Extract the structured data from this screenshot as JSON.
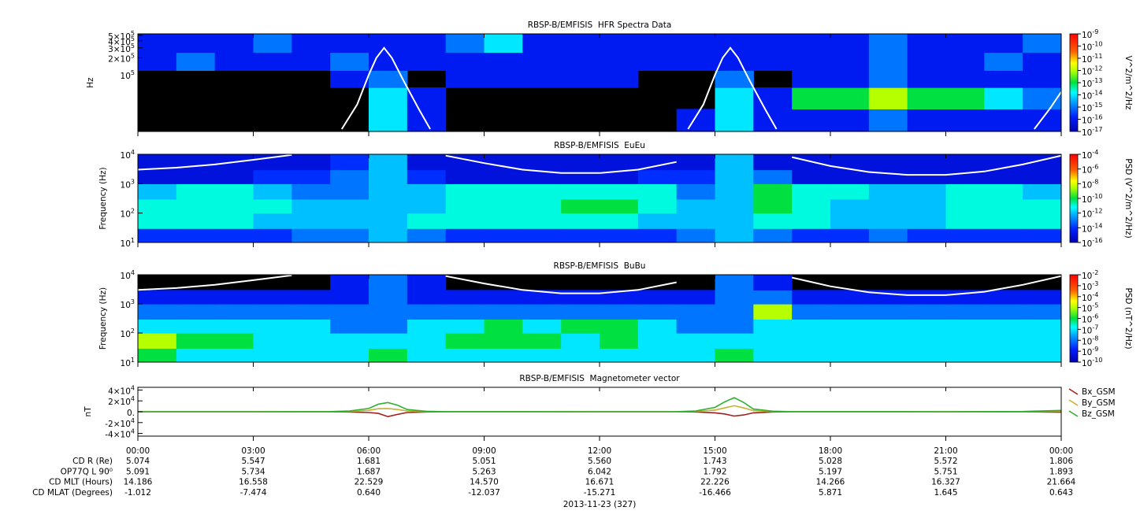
{
  "chart_data": [
    {
      "type": "heatmap",
      "title": "RBSP-B/EMFISIS  HFR Spectra Data",
      "ylabel": "Hz",
      "ylog": true,
      "xlim": [
        0,
        24
      ],
      "ylim": [
        10000,
        530000
      ],
      "yticks": [
        {
          "value": 500000,
          "label": "5×10^5"
        },
        {
          "value": 400000,
          "label": "4×10^5"
        },
        {
          "value": 300000,
          "label": "3×10^5"
        },
        {
          "value": 200000,
          "label": "2×10^5"
        },
        {
          "value": 100000,
          "label": "10^5"
        }
      ],
      "ybins": [
        10000,
        25000,
        60000,
        120000,
        250000,
        530000
      ],
      "z": [
        [
          null,
          null,
          null,
          null,
          null,
          null,
          1e-14,
          1e-16,
          null,
          null,
          null,
          null,
          null,
          null,
          1e-16,
          1e-14,
          1e-16,
          1e-16,
          1e-16,
          1e-15,
          1e-16,
          1e-16,
          1e-16,
          1e-16
        ],
        [
          null,
          null,
          null,
          null,
          null,
          null,
          1e-14,
          1e-16,
          null,
          null,
          null,
          null,
          null,
          null,
          null,
          1e-14,
          1e-16,
          1e-13,
          1e-13,
          1e-12,
          1e-13,
          1e-13,
          1e-14,
          1e-15
        ],
        [
          null,
          null,
          null,
          null,
          null,
          1e-16,
          1e-15,
          null,
          1e-16,
          1e-16,
          1e-16,
          1e-16,
          1e-16,
          null,
          null,
          1e-15,
          null,
          1e-16,
          1e-16,
          1e-15,
          1e-16,
          1e-16,
          1e-16,
          1e-16
        ],
        [
          1e-16,
          1e-15,
          1e-16,
          1e-16,
          1e-16,
          1e-15,
          1e-16,
          1e-16,
          1e-16,
          1e-16,
          1e-16,
          1e-16,
          1e-16,
          1e-16,
          1e-16,
          1e-16,
          1e-16,
          1e-16,
          1e-16,
          1e-15,
          1e-16,
          1e-16,
          1e-15,
          1e-16
        ],
        [
          1e-16,
          1e-16,
          1e-16,
          1e-15,
          1e-16,
          1e-16,
          1e-16,
          1e-16,
          1e-15,
          1e-14,
          1e-16,
          1e-16,
          1e-16,
          1e-16,
          1e-16,
          1e-16,
          1e-16,
          1e-16,
          1e-16,
          1e-15,
          1e-16,
          1e-16,
          1e-16,
          1e-15
        ]
      ],
      "colorbar": {
        "label": "V^2/m^2/Hz",
        "lim": [
          1e-17,
          1e-09
        ],
        "ticks": [
          {
            "value": 1e-09,
            "label": "10^-9"
          },
          {
            "value": 1e-10,
            "label": "10^-10"
          },
          {
            "value": 1e-11,
            "label": "10^-11"
          },
          {
            "value": 1e-12,
            "label": "10^-12"
          },
          {
            "value": 1e-13,
            "label": "10^-13"
          },
          {
            "value": 1e-14,
            "label": "10^-14"
          },
          {
            "value": 1e-15,
            "label": "10^-15"
          },
          {
            "value": 1e-16,
            "label": "10^-16"
          },
          {
            "value": 1e-17,
            "label": "10^-17"
          }
        ]
      },
      "overlay": {
        "color": "#ffffff",
        "x": [
          5.3,
          5.7,
          6.0,
          6.2,
          6.4,
          6.6,
          6.9,
          7.3,
          7.6,
          11,
          14.3,
          14.7,
          15.0,
          15.2,
          15.4,
          15.6,
          15.9,
          16.3,
          16.6,
          20,
          23.3,
          23.7,
          24
        ],
        "values": [
          11000,
          30000,
          100000,
          200000,
          300000,
          200000,
          80000,
          25000,
          11000,
          null,
          11000,
          30000,
          100000,
          200000,
          300000,
          200000,
          80000,
          25000,
          11000,
          null,
          11000,
          25000,
          50000
        ]
      }
    },
    {
      "type": "heatmap",
      "title": "RBSP-B/EMFISIS  EuEu",
      "ylabel": "Frequency (Hz)",
      "ylog": true,
      "xlim": [
        0,
        24
      ],
      "ylim": [
        10,
        10000
      ],
      "yticks": [
        {
          "value": 10,
          "label": "10^1"
        },
        {
          "value": 100,
          "label": "10^2"
        },
        {
          "value": 1000,
          "label": "10^3"
        },
        {
          "value": 10000,
          "label": "10^4"
        }
      ],
      "ybins": [
        10,
        30,
        100,
        300,
        1000,
        3000,
        10000
      ],
      "z": [
        [
          1e-14,
          1e-14,
          1e-14,
          1e-14,
          1e-13,
          1e-13,
          1e-12,
          1e-13,
          1e-14,
          1e-14,
          1e-14,
          1e-14,
          1e-14,
          1e-14,
          1e-13,
          1e-12,
          1e-13,
          1e-14,
          1e-14,
          1e-13,
          1e-14,
          1e-14,
          1e-14,
          1e-14
        ],
        [
          1e-11,
          1e-11,
          1e-11,
          1e-12,
          1e-12,
          1e-12,
          1e-12,
          1e-11,
          1e-11,
          1e-11,
          1e-11,
          1e-11,
          1e-11,
          1e-12,
          1e-12,
          1e-12,
          1e-11,
          1e-11,
          1e-12,
          1e-12,
          1e-12,
          1e-11,
          1e-11,
          1e-11
        ],
        [
          1e-11,
          1e-11,
          1e-11,
          1e-11,
          1e-12,
          1e-12,
          1e-12,
          1e-12,
          1e-11,
          1e-11,
          1e-11,
          1e-10,
          1e-10,
          1e-11,
          1e-12,
          1e-12,
          1e-10,
          1e-11,
          1e-12,
          1e-12,
          1e-12,
          1e-11,
          1e-11,
          1e-11
        ],
        [
          1e-12,
          1e-11,
          1e-11,
          1e-12,
          1e-13,
          1e-13,
          1e-12,
          1e-12,
          1e-11,
          1e-11,
          1e-11,
          1e-11,
          1e-11,
          1e-11,
          1e-13,
          1e-12,
          1e-10,
          1e-11,
          1e-11,
          1e-12,
          1e-12,
          1e-11,
          1e-11,
          1e-12
        ],
        [
          1e-15,
          1e-15,
          1e-15,
          1e-14,
          1e-14,
          1e-13,
          1e-12,
          1e-14,
          1e-15,
          1e-15,
          1e-15,
          1e-15,
          1e-15,
          1e-14,
          1e-14,
          1e-12,
          1e-13,
          1e-15,
          1e-15,
          1e-15,
          1e-15,
          1e-15,
          1e-15,
          1e-15
        ],
        [
          1e-15,
          1e-15,
          1e-15,
          1e-15,
          1e-15,
          1e-14,
          1e-12,
          1e-15,
          1e-15,
          1e-15,
          1e-15,
          1e-15,
          1e-15,
          1e-15,
          1e-15,
          1e-12,
          1e-15,
          1e-15,
          1e-15,
          1e-15,
          1e-15,
          1e-15,
          1e-15,
          1e-15
        ]
      ],
      "colorbar": {
        "label": "PSD (V^2/m^2/Hz)",
        "lim": [
          1e-16,
          0.0001
        ],
        "ticks": [
          {
            "value": 0.0001,
            "label": "10^-4"
          },
          {
            "value": 1e-06,
            "label": "10^-6"
          },
          {
            "value": 1e-08,
            "label": "10^-8"
          },
          {
            "value": 1e-10,
            "label": "10^-10"
          },
          {
            "value": 1e-12,
            "label": "10^-12"
          },
          {
            "value": 1e-14,
            "label": "10^-14"
          },
          {
            "value": 1e-16,
            "label": "10^-16"
          }
        ]
      },
      "overlay": {
        "color": "#ffffff",
        "x": [
          0,
          1,
          2,
          3,
          4,
          5,
          6,
          7,
          8,
          9,
          10,
          11,
          12,
          13,
          14,
          15,
          16,
          17,
          18,
          19,
          20,
          21,
          22,
          23,
          24
        ],
        "values": [
          3000,
          3500,
          4500,
          6500,
          9500,
          null,
          null,
          null,
          9000,
          5000,
          3000,
          2300,
          2300,
          3000,
          5500,
          null,
          null,
          8000,
          4000,
          2500,
          2000,
          2000,
          2600,
          4500,
          9000
        ]
      }
    },
    {
      "type": "heatmap",
      "title": "RBSP-B/EMFISIS  BuBu",
      "ylabel": "Frequency (Hz)",
      "ylog": true,
      "xlim": [
        0,
        24
      ],
      "ylim": [
        10,
        10000
      ],
      "yticks": [
        {
          "value": 10,
          "label": "10^1"
        },
        {
          "value": 100,
          "label": "10^2"
        },
        {
          "value": 1000,
          "label": "10^3"
        },
        {
          "value": 10000,
          "label": "10^4"
        }
      ],
      "ybins": [
        10,
        30,
        100,
        300,
        1000,
        3000,
        10000
      ],
      "z": [
        [
          1e-06,
          1e-07,
          1e-07,
          1e-07,
          1e-07,
          1e-07,
          1e-06,
          1e-07,
          1e-07,
          1e-07,
          1e-07,
          1e-07,
          1e-07,
          1e-07,
          1e-07,
          1e-06,
          1e-07,
          1e-07,
          1e-07,
          1e-07,
          1e-07,
          1e-07,
          1e-07,
          1e-07
        ],
        [
          1e-05,
          1e-06,
          1e-06,
          1e-07,
          1e-07,
          1e-07,
          1e-07,
          1e-07,
          1e-06,
          1e-06,
          1e-06,
          1e-07,
          1e-06,
          1e-07,
          1e-07,
          1e-07,
          1e-07,
          1e-07,
          1e-07,
          1e-07,
          1e-07,
          1e-07,
          1e-07,
          1e-07
        ],
        [
          1e-07,
          1e-07,
          1e-07,
          1e-07,
          1e-07,
          1e-08,
          1e-08,
          1e-07,
          1e-07,
          1e-06,
          1e-07,
          1e-06,
          1e-06,
          1e-07,
          1e-08,
          1e-08,
          1e-07,
          1e-07,
          1e-07,
          1e-07,
          1e-07,
          1e-07,
          1e-07,
          1e-07
        ],
        [
          1e-08,
          1e-08,
          1e-08,
          1e-08,
          1e-08,
          1e-08,
          1e-08,
          1e-08,
          1e-08,
          1e-08,
          1e-08,
          1e-08,
          1e-08,
          1e-08,
          1e-08,
          1e-08,
          1e-05,
          1e-08,
          1e-08,
          1e-08,
          1e-08,
          1e-08,
          1e-08,
          1e-08
        ],
        [
          1e-09,
          1e-09,
          1e-09,
          1e-09,
          1e-09,
          1e-09,
          1e-08,
          1e-09,
          1e-09,
          1e-09,
          1e-09,
          1e-09,
          1e-09,
          1e-09,
          1e-09,
          1e-08,
          1e-08,
          1e-09,
          1e-09,
          1e-09,
          1e-09,
          1e-09,
          1e-09,
          1e-09
        ],
        [
          null,
          null,
          null,
          null,
          null,
          1e-09,
          1e-08,
          1e-09,
          null,
          null,
          null,
          null,
          null,
          null,
          null,
          1e-08,
          1e-09,
          null,
          null,
          null,
          null,
          null,
          null,
          null
        ]
      ],
      "colorbar": {
        "label": "PSD (nT^2/Hz)",
        "lim": [
          1e-10,
          0.01
        ],
        "ticks": [
          {
            "value": 0.01,
            "label": "10^-2"
          },
          {
            "value": 0.001,
            "label": "10^-3"
          },
          {
            "value": 0.0001,
            "label": "10^-4"
          },
          {
            "value": 1e-05,
            "label": "10^-5"
          },
          {
            "value": 1e-06,
            "label": "10^-6"
          },
          {
            "value": 1e-07,
            "label": "10^-7"
          },
          {
            "value": 1e-08,
            "label": "10^-8"
          },
          {
            "value": 1e-09,
            "label": "10^-9"
          },
          {
            "value": 1e-10,
            "label": "10^-10"
          }
        ]
      },
      "overlay": {
        "color": "#ffffff",
        "x": [
          0,
          1,
          2,
          3,
          4,
          5,
          6,
          7,
          8,
          9,
          10,
          11,
          12,
          13,
          14,
          15,
          16,
          17,
          18,
          19,
          20,
          21,
          22,
          23,
          24
        ],
        "values": [
          3000,
          3500,
          4500,
          6500,
          9500,
          null,
          null,
          null,
          9000,
          5000,
          3000,
          2300,
          2300,
          3000,
          5500,
          null,
          null,
          8000,
          4000,
          2500,
          2000,
          2000,
          2600,
          4500,
          9000
        ]
      }
    },
    {
      "type": "line",
      "title": "RBSP-B/EMFISIS  Magnetometer vector",
      "ylabel": "nT",
      "xlim": [
        0,
        24
      ],
      "ylim": [
        -45000,
        45000
      ],
      "xticks": [
        {
          "value": 0,
          "label": "00:00"
        },
        {
          "value": 3,
          "label": "03:00"
        },
        {
          "value": 6,
          "label": "06:00"
        },
        {
          "value": 9,
          "label": "09:00"
        },
        {
          "value": 12,
          "label": "12:00"
        },
        {
          "value": 15,
          "label": "15:00"
        },
        {
          "value": 18,
          "label": "18:00"
        },
        {
          "value": 21,
          "label": "21:00"
        },
        {
          "value": 24,
          "label": "00:00"
        }
      ],
      "yticks": [
        {
          "value": 40000,
          "label": "4×10^4"
        },
        {
          "value": 20000,
          "label": "2×10^4"
        },
        {
          "value": 0,
          "label": "0."
        },
        {
          "value": -20000,
          "label": "-2×10^4"
        },
        {
          "value": -40000,
          "label": "-4×10^4"
        }
      ],
      "x": [
        0,
        3,
        5,
        5.5,
        6,
        6.25,
        6.5,
        6.75,
        7,
        7.5,
        8,
        12,
        14,
        14.5,
        15,
        15.25,
        15.5,
        15.75,
        16,
        16.5,
        17,
        21,
        23,
        24
      ],
      "series": [
        {
          "name": "Bx_GSM",
          "color": "#a02020",
          "values": [
            0,
            0,
            -100,
            -500,
            -1500,
            -3000,
            -9000,
            -5000,
            -1500,
            -400,
            0,
            0,
            0,
            -400,
            -2000,
            -4000,
            -8000,
            -6000,
            -2000,
            -500,
            0,
            0,
            -200,
            -800
          ]
        },
        {
          "name": "By_GSM",
          "color": "#c8b030",
          "values": [
            0,
            0,
            100,
            600,
            2500,
            5500,
            6000,
            4000,
            1500,
            300,
            0,
            0,
            0,
            600,
            3000,
            7000,
            11000,
            7000,
            2000,
            400,
            100,
            0,
            200,
            1000
          ]
        },
        {
          "name": "Bz_GSM",
          "color": "#30b030",
          "values": [
            0,
            0,
            300,
            1500,
            6000,
            14000,
            17000,
            12000,
            4000,
            800,
            100,
            0,
            100,
            1500,
            8000,
            18000,
            26000,
            17000,
            5000,
            1000,
            200,
            0,
            500,
            2500
          ]
        }
      ]
    }
  ],
  "ephemeris": {
    "date": "2013-11-23 (327)",
    "rows": [
      {
        "label": "CD R (Re)",
        "values": [
          "5.074",
          "5.547",
          "1.681",
          "5.051",
          "5.560",
          "1.743",
          "5.028",
          "5.572",
          "1.806"
        ]
      },
      {
        "label": "OP77Q L 90⁰",
        "values": [
          "5.091",
          "5.734",
          "1.687",
          "5.263",
          "6.042",
          "1.792",
          "5.197",
          "5.751",
          "1.893"
        ]
      },
      {
        "label": "CD MLT (Hours)",
        "values": [
          "14.186",
          "16.558",
          "22.529",
          "14.570",
          "16.671",
          "22.226",
          "14.266",
          "16.327",
          "21.664"
        ]
      },
      {
        "label": "CD MLAT (Degrees)",
        "values": [
          "-1.012",
          "-7.474",
          "0.640",
          "-12.037",
          "-15.271",
          "-16.466",
          "5.871",
          "1.645",
          "0.643"
        ]
      }
    ]
  }
}
